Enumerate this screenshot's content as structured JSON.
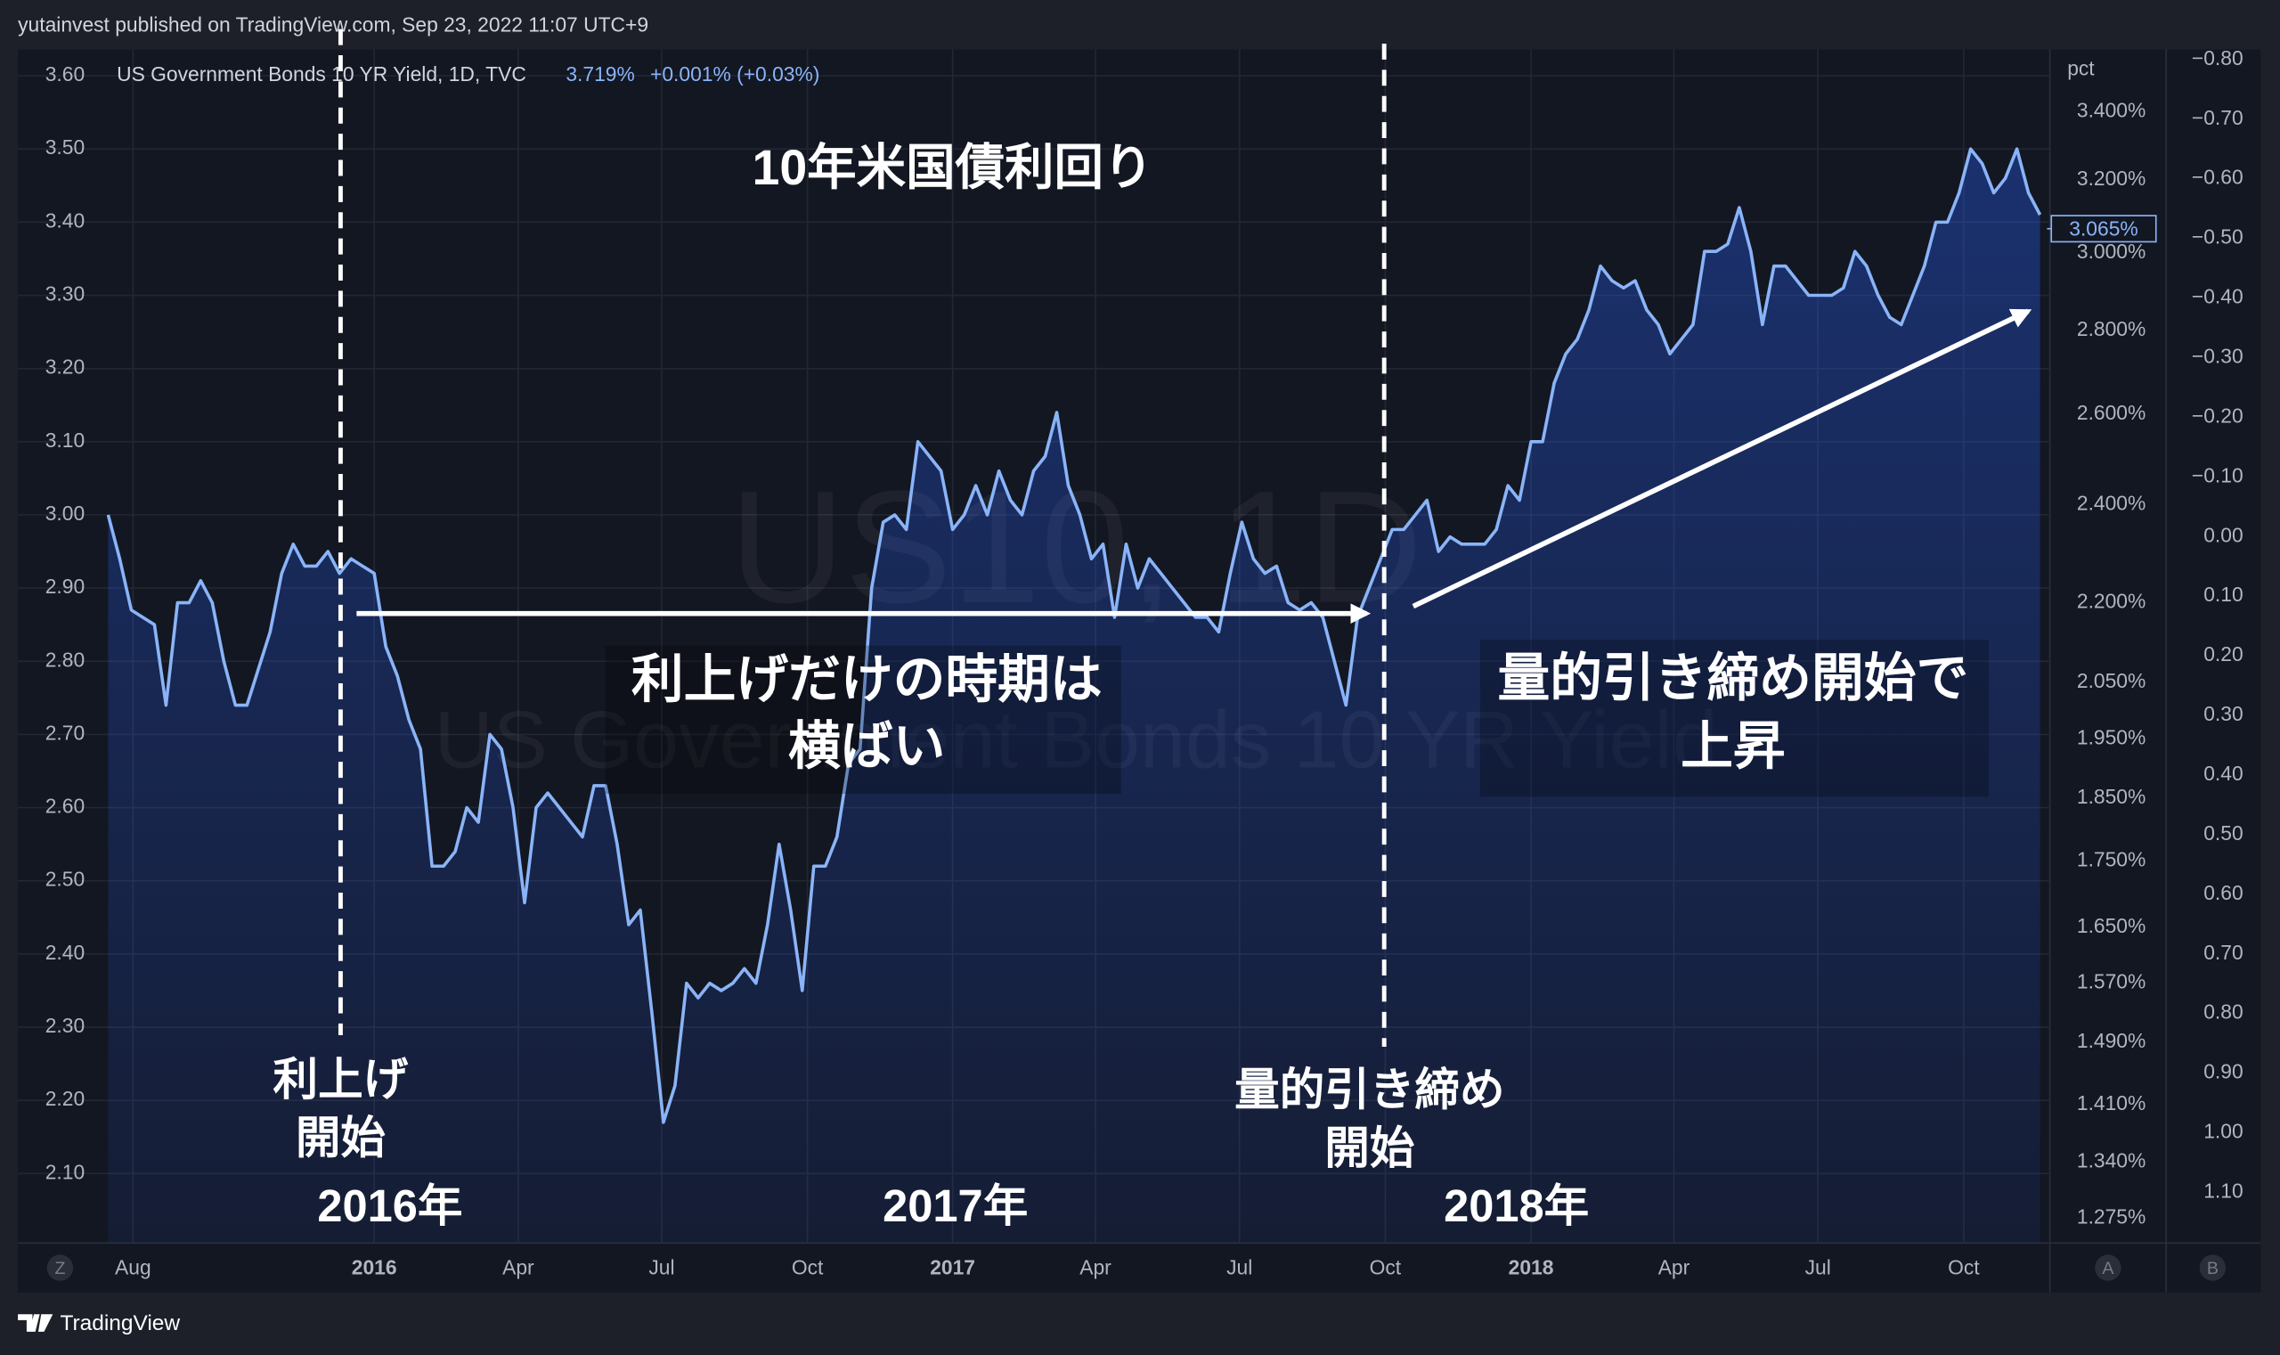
{
  "header": {
    "published": "yutainvest published on TradingView.com, Sep 23, 2022 11:07 UTC+9"
  },
  "chart_data": {
    "type": "line",
    "title": "10年米国債利回り",
    "legend_values": [
      "3.719%",
      "+0.001% (+0.03%)"
    ],
    "watermark": {
      "symbol": "US10, 1D",
      "name": "US Government Bonds 10 YR Yield"
    },
    "x": [
      2015.54,
      2015.56,
      2015.58,
      2015.6,
      2015.62,
      2015.64,
      2015.66,
      2015.68,
      2015.7,
      2015.72,
      2015.74,
      2015.76,
      2015.78,
      2015.8,
      2015.82,
      2015.84,
      2015.86,
      2015.88,
      2015.9,
      2015.92,
      2015.94,
      2015.96,
      2015.98,
      2016,
      2016.02,
      2016.04,
      2016.06,
      2016.08,
      2016.1,
      2016.12,
      2016.14,
      2016.16,
      2016.18,
      2016.2,
      2016.22,
      2016.24,
      2016.26,
      2016.28,
      2016.3,
      2016.32,
      2016.34,
      2016.36,
      2016.38,
      2016.4,
      2016.42,
      2016.44,
      2016.46,
      2016.48,
      2016.5,
      2016.52,
      2016.54,
      2016.56,
      2016.58,
      2016.6,
      2016.62,
      2016.64,
      2016.66,
      2016.68,
      2016.7,
      2016.72,
      2016.74,
      2016.76,
      2016.78,
      2016.8,
      2016.82,
      2016.84,
      2016.86,
      2016.88,
      2016.9,
      2016.92,
      2016.94,
      2016.96,
      2016.98,
      2017,
      2017.02,
      2017.04,
      2017.06,
      2017.08,
      2017.1,
      2017.12,
      2017.14,
      2017.16,
      2017.18,
      2017.2,
      2017.22,
      2017.24,
      2017.26,
      2017.28,
      2017.3,
      2017.32,
      2017.34,
      2017.36,
      2017.38,
      2017.4,
      2017.42,
      2017.44,
      2017.46,
      2017.48,
      2017.5,
      2017.52,
      2017.54,
      2017.56,
      2017.58,
      2017.6,
      2017.62,
      2017.64,
      2017.66,
      2017.68,
      2017.7,
      2017.72,
      2017.74,
      2017.76,
      2017.78,
      2017.8,
      2017.82,
      2017.84,
      2017.86,
      2017.88,
      2017.9,
      2017.92,
      2017.94,
      2017.96,
      2017.98,
      2018,
      2018.02,
      2018.04,
      2018.06,
      2018.08,
      2018.1,
      2018.12,
      2018.14,
      2018.16,
      2018.18,
      2018.2,
      2018.22,
      2018.24,
      2018.26,
      2018.28,
      2018.3,
      2018.32,
      2018.34,
      2018.36,
      2018.38,
      2018.4,
      2018.42,
      2018.44,
      2018.46,
      2018.48,
      2018.5,
      2018.52,
      2018.54,
      2018.56,
      2018.58,
      2018.6,
      2018.62,
      2018.64,
      2018.66,
      2018.68,
      2018.7,
      2018.72,
      2018.74,
      2018.76,
      2018.78,
      2018.8,
      2018.82,
      2018.84,
      2018.86,
      2018.88
    ],
    "series": [
      {
        "name": "US Government Bonds 10 YR Yield, 1D, TVC",
        "color": "#8ab4f8",
        "values": [
          3.0,
          2.94,
          2.87,
          2.86,
          2.85,
          2.74,
          2.88,
          2.88,
          2.91,
          2.88,
          2.8,
          2.74,
          2.74,
          2.79,
          2.84,
          2.92,
          2.96,
          2.93,
          2.93,
          2.95,
          2.92,
          2.94,
          2.93,
          2.92,
          2.82,
          2.78,
          2.72,
          2.68,
          2.52,
          2.52,
          2.54,
          2.6,
          2.58,
          2.7,
          2.68,
          2.6,
          2.47,
          2.6,
          2.62,
          2.6,
          2.58,
          2.56,
          2.63,
          2.63,
          2.55,
          2.44,
          2.46,
          2.32,
          2.17,
          2.22,
          2.36,
          2.34,
          2.36,
          2.35,
          2.36,
          2.38,
          2.36,
          2.44,
          2.55,
          2.46,
          2.35,
          2.52,
          2.52,
          2.56,
          2.66,
          2.68,
          2.9,
          2.99,
          3.0,
          2.98,
          3.1,
          3.08,
          3.06,
          2.98,
          3.0,
          3.04,
          3.0,
          3.06,
          3.02,
          3.0,
          3.06,
          3.08,
          3.14,
          3.04,
          3.0,
          2.94,
          2.96,
          2.86,
          2.96,
          2.9,
          2.94,
          2.92,
          2.9,
          2.88,
          2.86,
          2.86,
          2.84,
          2.92,
          2.99,
          2.94,
          2.92,
          2.93,
          2.88,
          2.87,
          2.88,
          2.86,
          2.8,
          2.74,
          2.86,
          2.9,
          2.94,
          2.98,
          2.98,
          3.0,
          3.02,
          2.95,
          2.97,
          2.96,
          2.96,
          2.96,
          2.98,
          3.04,
          3.02,
          3.1,
          3.1,
          3.18,
          3.22,
          3.24,
          3.28,
          3.34,
          3.32,
          3.31,
          3.32,
          3.28,
          3.26,
          3.22,
          3.24,
          3.26,
          3.36,
          3.36,
          3.37,
          3.42,
          3.36,
          3.26,
          3.34,
          3.34,
          3.32,
          3.3,
          3.3,
          3.3,
          3.31,
          3.36,
          3.34,
          3.3,
          3.27,
          3.26,
          3.3,
          3.34,
          3.4,
          3.4,
          3.44,
          3.5,
          3.48,
          3.44,
          3.46,
          3.5,
          3.44,
          3.41
        ]
      }
    ],
    "xlim": [
      2015.384,
      2018.897
    ],
    "xticks": [
      {
        "value": 2015.583,
        "label": "Aug"
      },
      2016,
      {
        "value": 2016.249,
        "label": "Apr"
      },
      {
        "value": 2016.497,
        "label": "Jul"
      },
      {
        "value": 2016.749,
        "label": "Oct"
      },
      2017,
      {
        "value": 2017.247,
        "label": "Apr"
      },
      {
        "value": 2017.496,
        "label": "Jul"
      },
      {
        "value": 2017.748,
        "label": "Oct"
      },
      2018,
      {
        "value": 2018.247,
        "label": "Apr"
      },
      {
        "value": 2018.496,
        "label": "Jul"
      },
      {
        "value": 2018.748,
        "label": "Oct"
      }
    ],
    "ylim": [
      2.005,
      3.636
    ],
    "yticks": [
      {
        "value": 3.6,
        "label": "3.60"
      },
      {
        "value": 3.5,
        "label": "3.50"
      },
      {
        "value": 3.4,
        "label": "3.40"
      },
      {
        "value": 3.3,
        "label": "3.30"
      },
      {
        "value": 3.2,
        "label": "3.20"
      },
      {
        "value": 3.1,
        "label": "3.10"
      },
      {
        "value": 3.0,
        "label": "3.00"
      },
      {
        "value": 2.9,
        "label": "2.90"
      },
      {
        "value": 2.8,
        "label": "2.80"
      },
      {
        "value": 2.7,
        "label": "2.70"
      },
      {
        "value": 2.6,
        "label": "2.60"
      },
      {
        "value": 2.5,
        "label": "2.50"
      },
      {
        "value": 2.4,
        "label": "2.40"
      },
      {
        "value": 2.3,
        "label": "2.30"
      },
      {
        "value": 2.2,
        "label": "2.20"
      },
      {
        "value": 2.1,
        "label": "2.10"
      }
    ],
    "grid": true,
    "y2label": "pct",
    "y2log": true,
    "y2lim": [
      1.247,
      3.593
    ],
    "y2ticks": [
      {
        "value": 3.4,
        "label": "3.400%"
      },
      {
        "value": 3.2,
        "label": "3.200%"
      },
      {
        "value": 3.0,
        "label": "3.000%"
      },
      {
        "value": 2.8,
        "label": "2.800%"
      },
      {
        "value": 2.6,
        "label": "2.600%"
      },
      {
        "value": 2.4,
        "label": "2.400%"
      },
      {
        "value": 2.2,
        "label": "2.200%"
      },
      {
        "value": 2.05,
        "label": "2.050%"
      },
      {
        "value": 1.95,
        "label": "1.950%"
      },
      {
        "value": 1.85,
        "label": "1.850%"
      },
      {
        "value": 1.75,
        "label": "1.750%"
      },
      {
        "value": 1.65,
        "label": "1.650%"
      },
      {
        "value": 1.57,
        "label": "1.570%"
      },
      {
        "value": 1.49,
        "label": "1.490%"
      },
      {
        "value": 1.41,
        "label": "1.410%"
      },
      {
        "value": 1.34,
        "label": "1.340%"
      },
      {
        "value": 1.275,
        "label": "1.275%"
      }
    ],
    "y2_marker": {
      "value": 3.065,
      "label": "3.065%"
    },
    "y3lim": [
      1.185,
      -0.817
    ],
    "y3ticks": [
      {
        "value": -0.8,
        "label": "−0.80"
      },
      {
        "value": -0.7,
        "label": "−0.70"
      },
      {
        "value": -0.6,
        "label": "−0.60"
      },
      {
        "value": -0.5,
        "label": "−0.50"
      },
      {
        "value": -0.4,
        "label": "−0.40"
      },
      {
        "value": -0.3,
        "label": "−0.30"
      },
      {
        "value": -0.2,
        "label": "−0.20"
      },
      {
        "value": -0.1,
        "label": "−0.10"
      },
      {
        "value": 0,
        "label": "0.00"
      },
      {
        "value": 0.1,
        "label": "0.10"
      },
      {
        "value": 0.2,
        "label": "0.20"
      },
      {
        "value": 0.3,
        "label": "0.30"
      },
      {
        "value": 0.4,
        "label": "0.40"
      },
      {
        "value": 0.5,
        "label": "0.50"
      },
      {
        "value": 0.6,
        "label": "0.60"
      },
      {
        "value": 0.7,
        "label": "0.70"
      },
      {
        "value": 0.8,
        "label": "0.80"
      },
      {
        "value": 0.9,
        "label": "0.90"
      },
      {
        "value": 1.0,
        "label": "1.00"
      },
      {
        "value": 1.1,
        "label": "1.10"
      }
    ],
    "annotations": [
      {
        "lines": [
          "利上げだけの時期は",
          "横ばい"
        ]
      },
      {
        "lines": [
          "量的引き締め開始で",
          "上昇"
        ]
      },
      {
        "lines": [
          "利上げ",
          "開始"
        ]
      },
      {
        "lines": [
          "量的引き締め",
          "開始"
        ]
      },
      {
        "lines": [
          "2016年"
        ]
      },
      {
        "lines": [
          "2017年"
        ]
      },
      {
        "lines": [
          "2018年"
        ]
      }
    ]
  },
  "buttons": [
    "Z",
    "A",
    "B"
  ],
  "footer": {
    "brand": "TradingView"
  }
}
